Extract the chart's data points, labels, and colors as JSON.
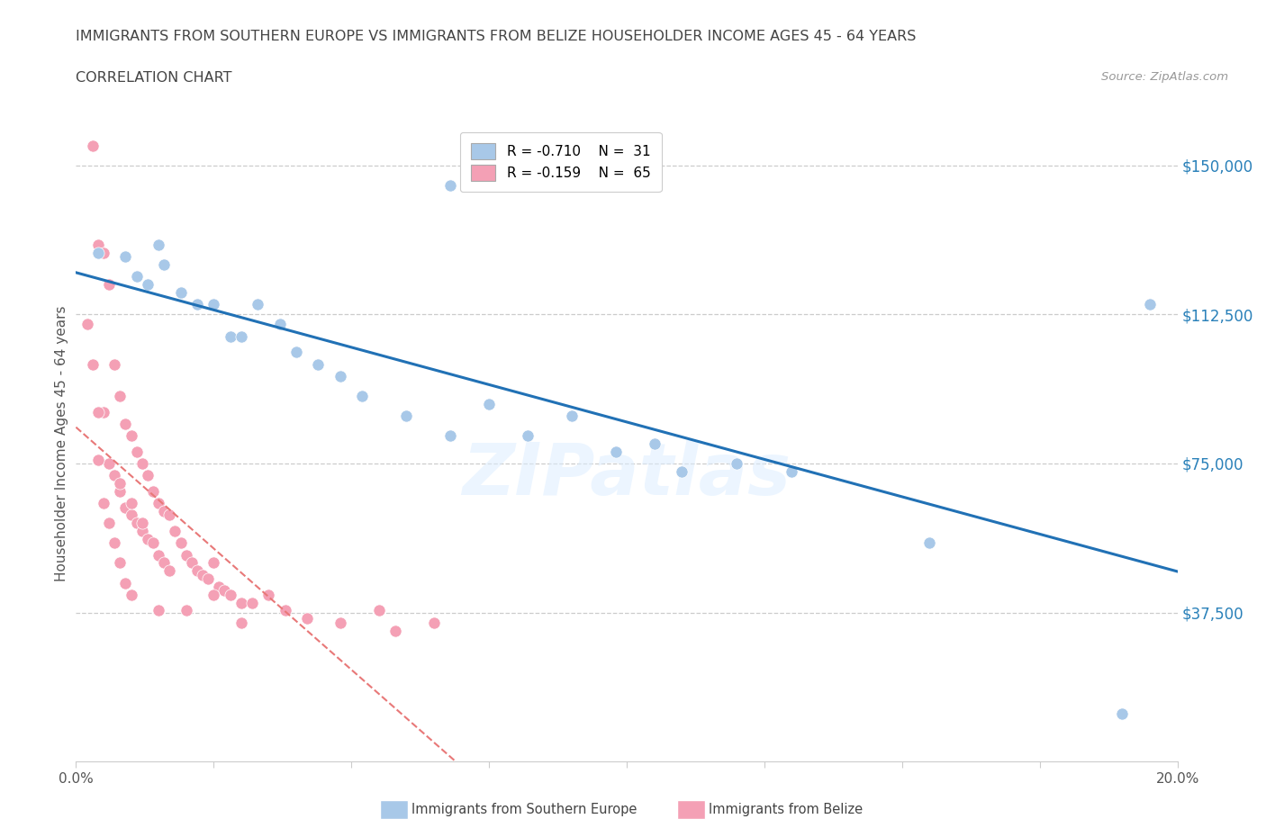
{
  "title_line1": "IMMIGRANTS FROM SOUTHERN EUROPE VS IMMIGRANTS FROM BELIZE HOUSEHOLDER INCOME AGES 45 - 64 YEARS",
  "title_line2": "CORRELATION CHART",
  "source": "Source: ZipAtlas.com",
  "ylabel": "Householder Income Ages 45 - 64 years",
  "xmin": 0.0,
  "xmax": 0.2,
  "ymin": 0,
  "ymax": 160000,
  "yticks": [
    37500,
    75000,
    112500,
    150000
  ],
  "ytick_labels": [
    "$37,500",
    "$75,000",
    "$112,500",
    "$150,000"
  ],
  "xticks": [
    0.0,
    0.025,
    0.05,
    0.075,
    0.1,
    0.125,
    0.15,
    0.175,
    0.2
  ],
  "xtick_labels": [
    "0.0%",
    "",
    "",
    "",
    "",
    "",
    "",
    "",
    "20.0%"
  ],
  "blue_color": "#a8c8e8",
  "pink_color": "#f4a0b5",
  "blue_line_color": "#2171b5",
  "pink_line_color": "#e87878",
  "legend_R1": "R = -0.710",
  "legend_N1": "N =  31",
  "legend_R2": "R = -0.159",
  "legend_N2": "N =  65",
  "blue_x": [
    0.004,
    0.009,
    0.011,
    0.013,
    0.015,
    0.016,
    0.019,
    0.022,
    0.025,
    0.028,
    0.03,
    0.033,
    0.037,
    0.04,
    0.044,
    0.048,
    0.052,
    0.06,
    0.068,
    0.075,
    0.082,
    0.09,
    0.098,
    0.105,
    0.11,
    0.12,
    0.13,
    0.155,
    0.19,
    0.068,
    0.195
  ],
  "blue_y": [
    128000,
    127000,
    122000,
    120000,
    130000,
    125000,
    118000,
    115000,
    115000,
    107000,
    107000,
    115000,
    110000,
    103000,
    100000,
    97000,
    92000,
    87000,
    82000,
    90000,
    82000,
    87000,
    78000,
    80000,
    73000,
    75000,
    73000,
    55000,
    12000,
    145000,
    115000
  ],
  "pink_x": [
    0.003,
    0.004,
    0.005,
    0.005,
    0.006,
    0.006,
    0.007,
    0.007,
    0.008,
    0.008,
    0.009,
    0.009,
    0.01,
    0.01,
    0.011,
    0.011,
    0.012,
    0.012,
    0.013,
    0.013,
    0.014,
    0.014,
    0.015,
    0.015,
    0.016,
    0.016,
    0.017,
    0.017,
    0.018,
    0.019,
    0.02,
    0.021,
    0.022,
    0.023,
    0.024,
    0.025,
    0.026,
    0.027,
    0.028,
    0.03,
    0.032,
    0.035,
    0.038,
    0.042,
    0.048,
    0.055,
    0.058,
    0.065,
    0.002,
    0.003,
    0.004,
    0.004,
    0.005,
    0.006,
    0.007,
    0.008,
    0.009,
    0.01,
    0.015,
    0.02,
    0.025,
    0.03,
    0.008,
    0.01,
    0.012
  ],
  "pink_y": [
    155000,
    130000,
    128000,
    88000,
    120000,
    75000,
    100000,
    72000,
    92000,
    68000,
    85000,
    64000,
    82000,
    62000,
    78000,
    60000,
    75000,
    58000,
    72000,
    56000,
    68000,
    55000,
    65000,
    52000,
    63000,
    50000,
    62000,
    48000,
    58000,
    55000,
    52000,
    50000,
    48000,
    47000,
    46000,
    50000,
    44000,
    43000,
    42000,
    40000,
    40000,
    42000,
    38000,
    36000,
    35000,
    38000,
    33000,
    35000,
    110000,
    100000,
    88000,
    76000,
    65000,
    60000,
    55000,
    50000,
    45000,
    42000,
    38000,
    38000,
    42000,
    35000,
    70000,
    65000,
    60000
  ]
}
